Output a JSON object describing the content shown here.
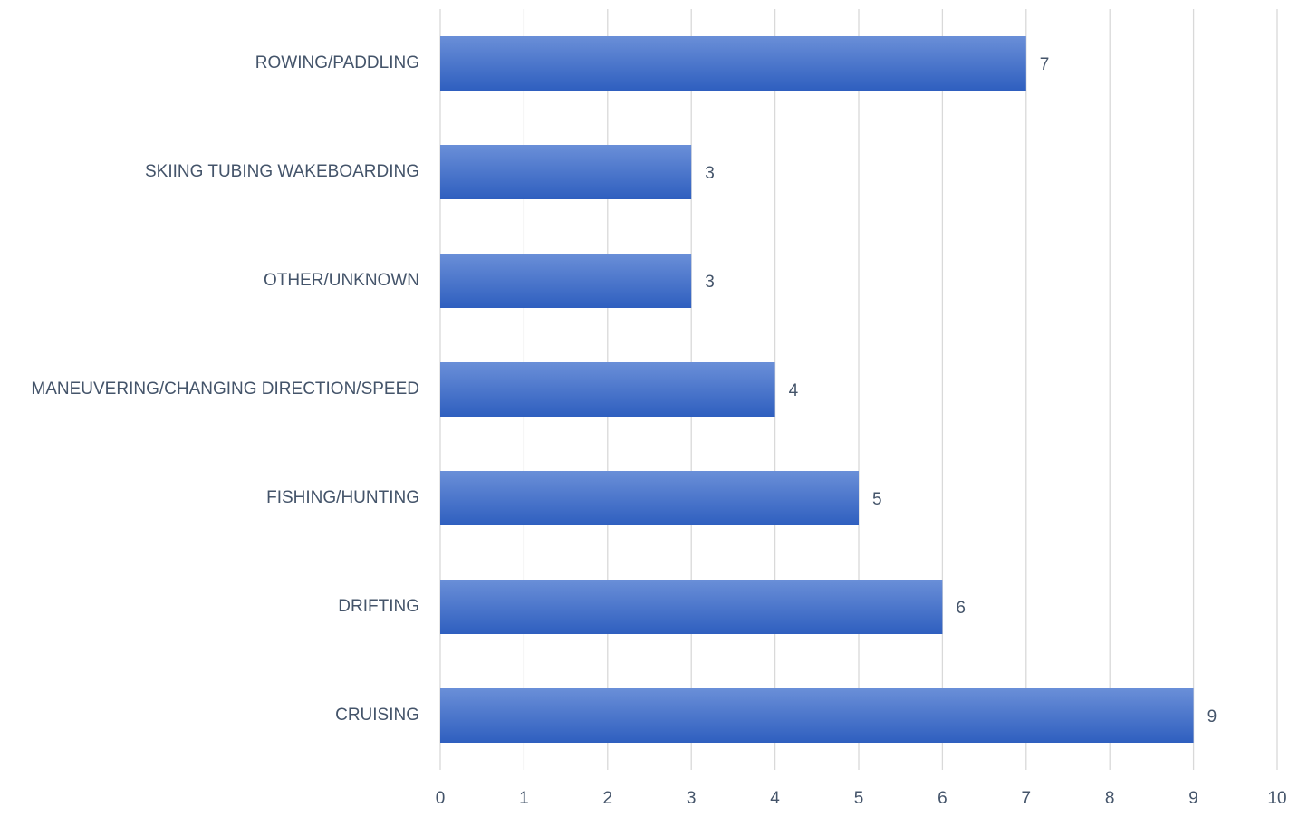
{
  "chart_data": {
    "type": "bar",
    "orientation": "horizontal",
    "title": "",
    "xlabel": "",
    "ylabel": "",
    "categories": [
      "ROWING/PADDLING",
      "SKIING TUBING WAKEBOARDING",
      "OTHER/UNKNOWN",
      "MANEUVERING/CHANGING DIRECTION/SPEED",
      "FISHING/HUNTING",
      "DRIFTING",
      "CRUISING"
    ],
    "values": [
      7,
      3,
      3,
      4,
      5,
      6,
      9
    ],
    "xlim": [
      0,
      10
    ],
    "x_ticks": [
      "0",
      "1",
      "2",
      "3",
      "4",
      "5",
      "6",
      "7",
      "8",
      "9",
      "10"
    ],
    "grid": "vertical",
    "legend": "none",
    "data_labels": true,
    "colors": {
      "bar_top": "#6a8fd8",
      "bar_bottom": "#2f5fbf",
      "grid": "#d9d9d9",
      "text": "#44546a"
    }
  }
}
